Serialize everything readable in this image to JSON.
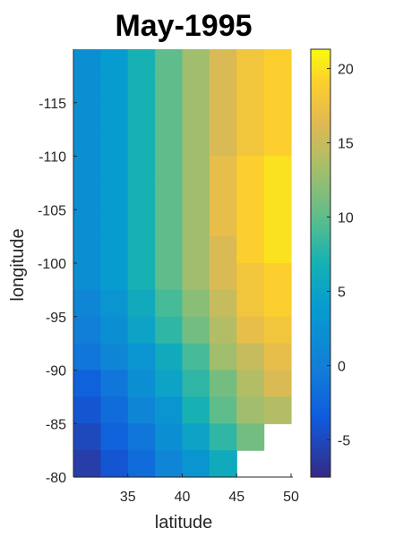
{
  "chart_data": {
    "type": "heatmap",
    "title": "May-1995",
    "xlabel": "latitude",
    "ylabel": "longitude",
    "x_centers": [
      31.25,
      33.75,
      36.25,
      38.75,
      41.25,
      43.75,
      46.25,
      48.75
    ],
    "y_centers": [
      -118.75,
      -116.25,
      -113.75,
      -111.25,
      -108.75,
      -106.25,
      -103.75,
      -101.25,
      -98.75,
      -96.25,
      -93.75,
      -91.25,
      -88.75,
      -86.25,
      -83.75,
      -81.25
    ],
    "xlim": [
      30,
      50
    ],
    "ylim": [
      -120,
      -80
    ],
    "y_reversed": true,
    "xticks": [
      35,
      40,
      45,
      50
    ],
    "yticks": [
      -115,
      -110,
      -105,
      -100,
      -95,
      -90,
      -85,
      -80
    ],
    "values": [
      [
        2,
        4,
        7,
        10,
        13,
        16,
        18,
        19
      ],
      [
        2,
        4,
        7,
        10,
        13,
        16,
        18,
        19
      ],
      [
        2,
        4,
        7,
        10,
        13,
        16,
        18,
        19
      ],
      [
        2,
        4,
        7,
        10,
        13,
        16,
        18,
        19
      ],
      [
        2,
        4,
        7,
        10,
        13,
        17,
        19,
        20
      ],
      [
        2,
        4,
        7,
        10,
        13,
        17,
        19,
        20
      ],
      [
        2,
        4,
        7,
        10,
        13,
        17,
        19,
        20
      ],
      [
        2,
        4,
        7,
        10,
        13,
        16,
        19,
        20
      ],
      [
        2,
        4,
        7,
        10,
        13,
        16,
        18,
        19
      ],
      [
        1,
        3,
        6,
        9,
        12,
        15,
        18,
        19
      ],
      [
        0,
        2,
        5,
        8,
        11,
        14,
        17,
        18
      ],
      [
        -1,
        1,
        3,
        6,
        9,
        13,
        15,
        17
      ],
      [
        -3,
        -1,
        2,
        5,
        8,
        11,
        14,
        16
      ],
      [
        -4,
        -2,
        1,
        3,
        7,
        10,
        13,
        14
      ],
      [
        -5,
        -3,
        -1,
        2,
        5,
        8,
        11,
        null
      ],
      [
        -6,
        -4,
        -2,
        1,
        3,
        6,
        null,
        null
      ]
    ],
    "colorbar": {
      "range": [
        -7.5,
        21.3
      ],
      "ticks": [
        -5,
        0,
        5,
        10,
        15,
        20
      ]
    },
    "colormap": "parula",
    "grid": false
  }
}
